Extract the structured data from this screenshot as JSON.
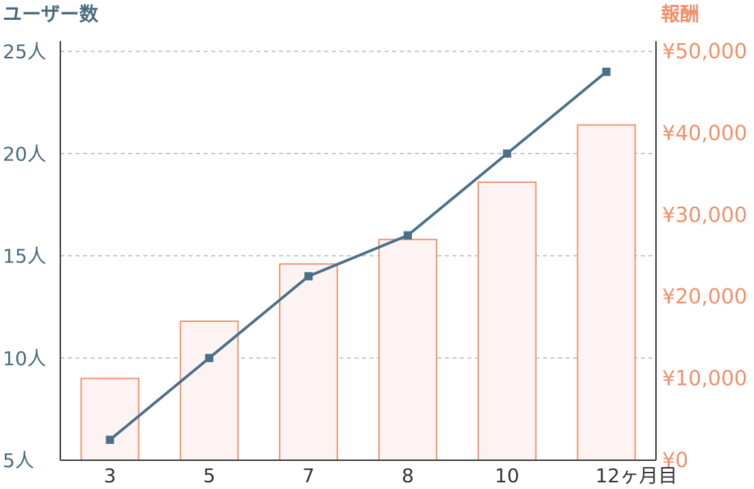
{
  "chart_data": {
    "type": "bar+line",
    "categories": [
      "3",
      "5",
      "7",
      "8",
      "10",
      "12ヶ月目"
    ],
    "y_left": {
      "title": "ユーザー数",
      "ylim": [
        5,
        25
      ],
      "ticks": [
        "25人",
        "20人",
        "15人",
        "10人",
        "5人"
      ],
      "tick_values": [
        25,
        20,
        15,
        10,
        5
      ]
    },
    "y_right": {
      "title": "報酬",
      "ylim": [
        0,
        50000
      ],
      "ticks": [
        "¥50,000",
        "¥40,000",
        "¥30,000",
        "¥20,000",
        "¥10,000",
        "¥0"
      ],
      "tick_values": [
        50000,
        40000,
        30000,
        20000,
        10000,
        0
      ]
    },
    "series": [
      {
        "type": "bar",
        "axis": "right",
        "values": [
          10000,
          17000,
          24000,
          27000,
          34000,
          41000
        ],
        "color": "#f0906a"
      },
      {
        "type": "line",
        "axis": "left",
        "values": [
          6,
          10,
          14,
          16,
          20,
          24
        ],
        "color": "#4a7088"
      }
    ],
    "grid": true
  }
}
